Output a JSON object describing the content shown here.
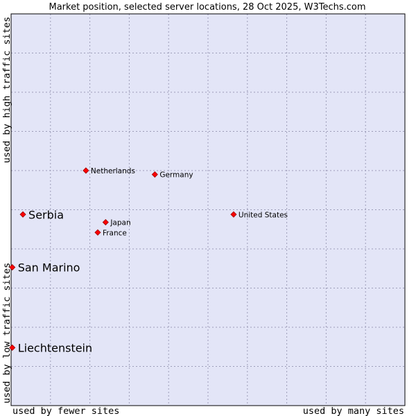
{
  "chart_data": {
    "type": "scatter",
    "title": "Market position, selected server locations, 28 Oct 2025, W3Techs.com",
    "xlabel_left": "used by fewer sites",
    "xlabel_right": "used by many sites",
    "ylabel_bottom": "used by low traffic sites",
    "ylabel_top": "used by high traffic sites",
    "xlim": [
      0,
      100
    ],
    "ylim": [
      0,
      100
    ],
    "grid": true,
    "colors": {
      "plot_bg": "#e3e5f7",
      "border": "#000000",
      "point": "#ff0000",
      "point_stroke": "#990000"
    },
    "points": [
      {
        "label": "Netherlands",
        "x": 19.0,
        "y": 60.0,
        "emphasis": false
      },
      {
        "label": "Germany",
        "x": 36.5,
        "y": 59.0,
        "emphasis": false
      },
      {
        "label": "Serbia",
        "x": 3.0,
        "y": 48.8,
        "emphasis": true
      },
      {
        "label": "United States",
        "x": 56.5,
        "y": 48.8,
        "emphasis": false
      },
      {
        "label": "Japan",
        "x": 24.0,
        "y": 46.8,
        "emphasis": false
      },
      {
        "label": "France",
        "x": 22.0,
        "y": 44.2,
        "emphasis": false
      },
      {
        "label": "San Marino",
        "x": 0.3,
        "y": 35.3,
        "emphasis": true
      },
      {
        "label": "Liechtenstein",
        "x": 0.3,
        "y": 14.8,
        "emphasis": true
      }
    ]
  }
}
